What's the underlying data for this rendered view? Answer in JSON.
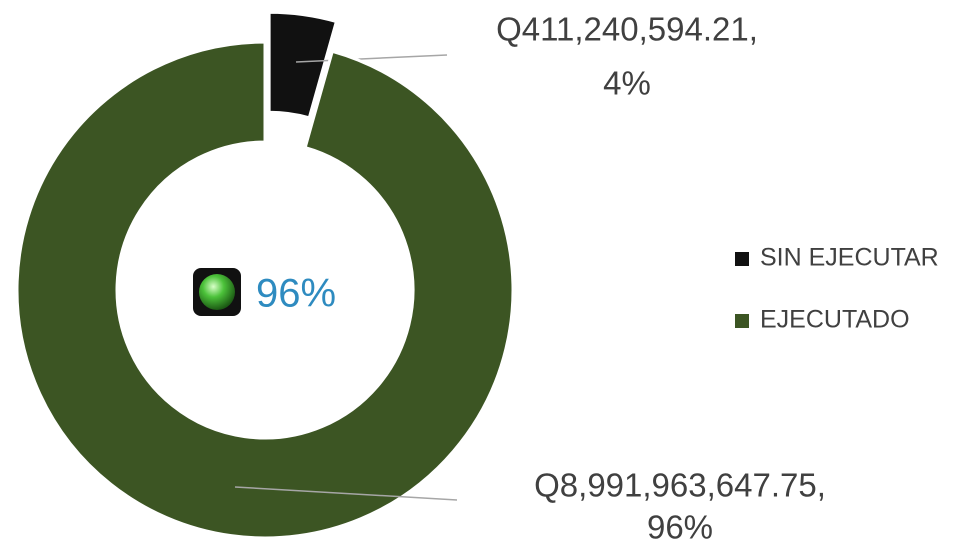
{
  "chart_data": {
    "type": "donut",
    "categories": [
      "SIN EJECUTAR",
      "EJECUTADO"
    ],
    "values": [
      411240594.21,
      8991963647.75
    ],
    "value_labels": [
      "Q411,240,594.21,",
      "Q8,991,963,647.75,"
    ],
    "percent_labels": [
      "4%",
      "96%"
    ],
    "colors": [
      "#111111",
      "#3c5523"
    ],
    "explode": [
      true,
      false
    ],
    "center_label": "96%",
    "legend": "right"
  }
}
